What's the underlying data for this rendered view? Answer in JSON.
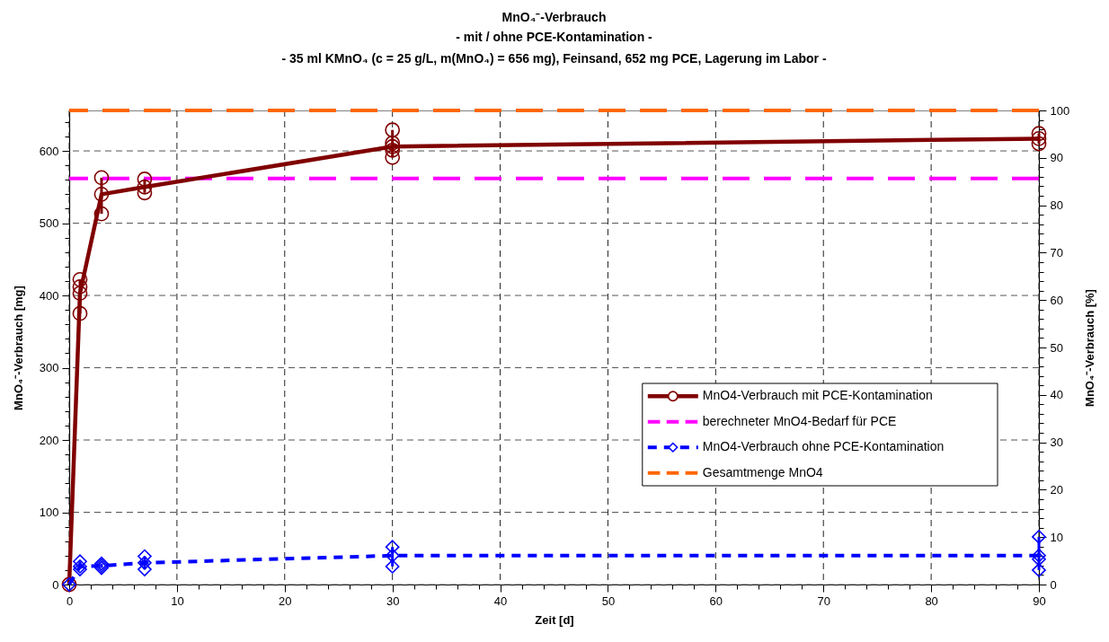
{
  "chart_data": {
    "type": "line",
    "title": "MnO₄⁻-Verbrauch",
    "subtitle": "- mit / ohne PCE-Kontamination -\n- 35 ml KMnO₄ (c = 25 g/L, m(MnO₄) = 656 mg), Feinsand, 652 mg PCE, Lagerung im Labor -",
    "xlabel": "Zeit [d]",
    "ylabel": "MnO₄⁻-Verbrauch [mg]",
    "y2label": "MnO₄⁻-Verbrauch [%]",
    "xlim": [
      0,
      90
    ],
    "xticks": [
      0,
      {
        "value": 2,
        "label": null
      },
      {
        "value": 4,
        "label": null
      },
      {
        "value": 6,
        "label": null
      },
      {
        "value": 8,
        "label": null
      },
      10,
      {
        "value": 12,
        "label": null
      },
      {
        "value": 14,
        "label": null
      },
      {
        "value": 16,
        "label": null
      },
      {
        "value": 18,
        "label": null
      },
      20,
      {
        "value": 22,
        "label": null
      },
      {
        "value": 24,
        "label": null
      },
      {
        "value": 26,
        "label": null
      },
      {
        "value": 28,
        "label": null
      },
      30,
      {
        "value": 32,
        "label": null
      },
      {
        "value": 34,
        "label": null
      },
      {
        "value": 36,
        "label": null
      },
      {
        "value": 38,
        "label": null
      },
      40,
      {
        "value": 42,
        "label": null
      },
      {
        "value": 44,
        "label": null
      },
      {
        "value": 46,
        "label": null
      },
      {
        "value": 48,
        "label": null
      },
      50,
      {
        "value": 52,
        "label": null
      },
      {
        "value": 54,
        "label": null
      },
      {
        "value": 56,
        "label": null
      },
      {
        "value": 58,
        "label": null
      },
      60,
      {
        "value": 62,
        "label": null
      },
      {
        "value": 64,
        "label": null
      },
      {
        "value": 66,
        "label": null
      },
      {
        "value": 68,
        "label": null
      },
      70,
      {
        "value": 72,
        "label": null
      },
      {
        "value": 74,
        "label": null
      },
      {
        "value": 76,
        "label": null
      },
      {
        "value": 78,
        "label": null
      },
      80,
      {
        "value": 82,
        "label": null
      },
      {
        "value": 84,
        "label": null
      },
      {
        "value": 86,
        "label": null
      },
      {
        "value": 88,
        "label": null
      },
      90
    ],
    "ylim": [
      0,
      656
    ],
    "yticks": [
      0,
      {
        "value": 20,
        "label": null
      },
      {
        "value": 40,
        "label": null
      },
      {
        "value": 60,
        "label": null
      },
      {
        "value": 80,
        "label": null
      },
      100,
      {
        "value": 120,
        "label": null
      },
      {
        "value": 140,
        "label": null
      },
      {
        "value": 160,
        "label": null
      },
      {
        "value": 180,
        "label": null
      },
      200,
      {
        "value": 220,
        "label": null
      },
      {
        "value": 240,
        "label": null
      },
      {
        "value": 260,
        "label": null
      },
      {
        "value": 280,
        "label": null
      },
      300,
      {
        "value": 320,
        "label": null
      },
      {
        "value": 340,
        "label": null
      },
      {
        "value": 360,
        "label": null
      },
      {
        "value": 380,
        "label": null
      },
      400,
      {
        "value": 420,
        "label": null
      },
      {
        "value": 440,
        "label": null
      },
      {
        "value": 460,
        "label": null
      },
      {
        "value": 480,
        "label": null
      },
      500,
      {
        "value": 520,
        "label": null
      },
      {
        "value": 540,
        "label": null
      },
      {
        "value": 560,
        "label": null
      },
      {
        "value": 580,
        "label": null
      },
      600,
      {
        "value": 620,
        "label": null
      },
      {
        "value": 640,
        "label": null
      }
    ],
    "y2lim": [
      0,
      100
    ],
    "y2ticks": [
      0,
      {
        "value": 2,
        "label": null
      },
      {
        "value": 4,
        "label": null
      },
      {
        "value": 6,
        "label": null
      },
      {
        "value": 8,
        "label": null
      },
      10,
      {
        "value": 12,
        "label": null
      },
      {
        "value": 14,
        "label": null
      },
      {
        "value": 16,
        "label": null
      },
      {
        "value": 18,
        "label": null
      },
      20,
      {
        "value": 22,
        "label": null
      },
      {
        "value": 24,
        "label": null
      },
      {
        "value": 26,
        "label": null
      },
      {
        "value": 28,
        "label": null
      },
      30,
      {
        "value": 32,
        "label": null
      },
      {
        "value": 34,
        "label": null
      },
      {
        "value": 36,
        "label": null
      },
      {
        "value": 38,
        "label": null
      },
      40,
      {
        "value": 42,
        "label": null
      },
      {
        "value": 44,
        "label": null
      },
      {
        "value": 46,
        "label": null
      },
      {
        "value": 48,
        "label": null
      },
      50,
      {
        "value": 52,
        "label": null
      },
      {
        "value": 54,
        "label": null
      },
      {
        "value": 56,
        "label": null
      },
      {
        "value": 58,
        "label": null
      },
      60,
      {
        "value": 62,
        "label": null
      },
      {
        "value": 64,
        "label": null
      },
      {
        "value": 66,
        "label": null
      },
      {
        "value": 68,
        "label": null
      },
      70,
      {
        "value": 72,
        "label": null
      },
      {
        "value": 74,
        "label": null
      },
      {
        "value": 76,
        "label": null
      },
      {
        "value": 78,
        "label": null
      },
      80,
      {
        "value": 82,
        "label": null
      },
      {
        "value": 84,
        "label": null
      },
      {
        "value": 86,
        "label": null
      },
      {
        "value": 88,
        "label": null
      },
      90,
      {
        "value": 92,
        "label": null
      },
      {
        "value": 94,
        "label": null
      },
      {
        "value": 96,
        "label": null
      },
      {
        "value": 98,
        "label": null
      },
      100
    ],
    "grid": true,
    "legend": "bottom right",
    "series": [
      {
        "name": "MnO4-Verbrauch mit PCE-Kontamination",
        "type": "line",
        "color": "#800000",
        "marker": "circle",
        "line_style": "solid",
        "x": [
          0,
          1,
          3,
          7,
          30,
          90
        ],
        "values": [
          0,
          403,
          540,
          550,
          606,
          617
        ],
        "errors": [
          null,
          [
            375,
            422
          ],
          [
            513,
            563
          ],
          [
            542,
            561
          ],
          [
            591,
            629
          ],
          [
            610,
            624
          ]
        ]
      },
      {
        "name": "MnO4-Verbrauch ohne PCE-Kontamination",
        "type": "line",
        "color": "#0000ff",
        "marker": "diamond",
        "line_style": "dashed",
        "x": [
          0,
          1,
          3,
          7,
          30,
          90
        ],
        "values": [
          0,
          25,
          26,
          30,
          40,
          40
        ],
        "errors": [
          null,
          [
            21,
            32
          ],
          [
            23,
            29
          ],
          [
            21,
            39
          ],
          [
            25,
            52
          ],
          [
            20,
            66
          ]
        ]
      },
      {
        "type": "scatter",
        "color": "#800000",
        "marker": "circle",
        "x": [
          1,
          1,
          1,
          3,
          3,
          7,
          7,
          30,
          30,
          30,
          30,
          90,
          90
        ],
        "values": [
          422,
          412,
          375,
          563,
          513,
          561,
          542,
          629,
          611,
          601,
          591,
          624,
          610
        ]
      },
      {
        "type": "scatter",
        "color": "#0000ff",
        "marker": "diamond",
        "x": [
          1,
          1,
          3,
          3,
          7,
          7,
          30,
          30,
          90,
          90,
          90
        ],
        "values": [
          32,
          21,
          29,
          23,
          39,
          21,
          52,
          25,
          66,
          35,
          20
        ]
      }
    ],
    "ref_lines": [
      {
        "axis": "y",
        "value": 562,
        "label": "berechneter MnO4-Bedarf für PCE",
        "color": "#ff00ff",
        "line_style": "dashed"
      },
      {
        "axis": "y2",
        "value": 100,
        "label": "Gesamtmenge MnO4",
        "color": "#ff6600",
        "line_style": "dashed"
      }
    ]
  }
}
